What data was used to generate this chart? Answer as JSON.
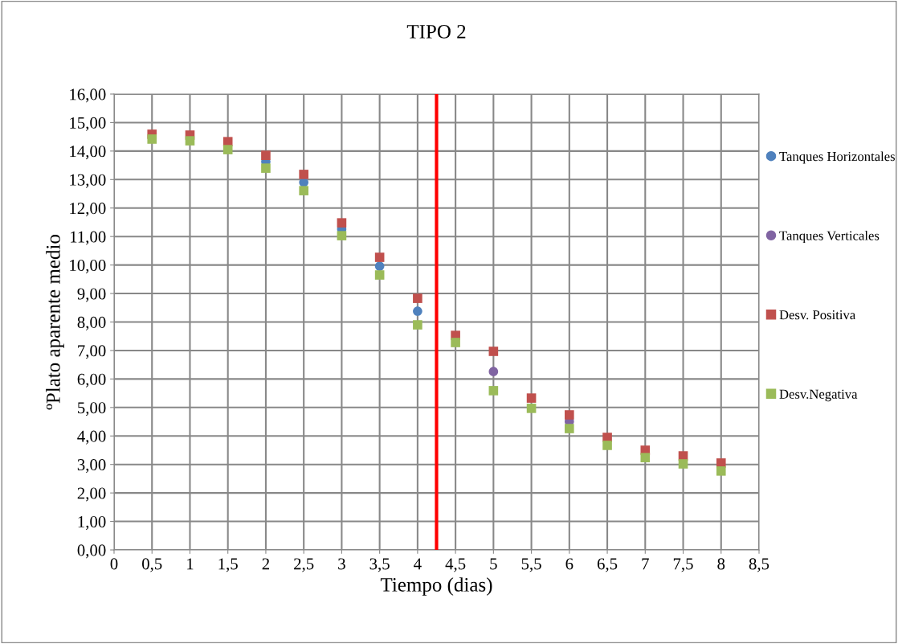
{
  "chart_data": {
    "type": "scatter",
    "title": "TIPO 2",
    "xlabel": "Tiempo (dias)",
    "ylabel": "ºPlato aparente medio",
    "series": [
      {
        "name": "Tanques Horizontales",
        "color": "#4f81bd",
        "marker": "circle",
        "x": [
          2,
          2.5,
          3,
          3.5,
          4
        ],
        "values": [
          13.63,
          12.9,
          11.26,
          9.96,
          8.38
        ]
      },
      {
        "name": "Tanques Verticales",
        "color": "#8064a2",
        "marker": "circle",
        "x": [
          5,
          6
        ],
        "values": [
          6.26,
          4.51
        ]
      },
      {
        "name": "Desv. Positiva",
        "color": "#c0504d",
        "marker": "square",
        "x": [
          0.5,
          1,
          1.5,
          2,
          2.5,
          3,
          3.5,
          4,
          4.5,
          5,
          5.5,
          6,
          6.5,
          7,
          7.5,
          8
        ],
        "values": [
          14.59,
          14.56,
          14.33,
          13.85,
          13.18,
          11.48,
          10.27,
          8.83,
          7.53,
          6.97,
          5.33,
          4.74,
          3.95,
          3.5,
          3.3,
          3.05
        ]
      },
      {
        "name": "Desv.Negativa",
        "color": "#9bbb59",
        "marker": "square",
        "x": [
          0.5,
          1,
          1.5,
          2,
          2.5,
          3,
          3.5,
          4,
          4.5,
          5,
          5.5,
          6,
          6.5,
          7,
          7.5,
          8
        ],
        "values": [
          14.42,
          14.36,
          14.05,
          13.4,
          12.61,
          11.03,
          9.65,
          7.9,
          7.28,
          5.59,
          4.97,
          4.26,
          3.67,
          3.24,
          3.02,
          2.77
        ]
      }
    ],
    "xlim": [
      0,
      8.5
    ],
    "xticks": [
      0,
      {
        "value": 0.5,
        "label": "0,5"
      },
      1,
      {
        "value": 1.5,
        "label": "1,5"
      },
      2,
      {
        "value": 2.5,
        "label": "2,5"
      },
      3,
      {
        "value": 3.5,
        "label": "3,5"
      },
      4,
      {
        "value": 4.5,
        "label": "4,5"
      },
      5,
      {
        "value": 5.5,
        "label": "5,5"
      },
      6,
      {
        "value": 6.5,
        "label": "6,5"
      },
      7,
      {
        "value": 7.5,
        "label": "7,5"
      },
      8,
      {
        "value": 8.5,
        "label": "8,5"
      }
    ],
    "ylim": [
      0,
      16
    ],
    "yticks": [
      {
        "value": 0,
        "label": "0,00"
      },
      {
        "value": 1,
        "label": "1,00"
      },
      {
        "value": 2,
        "label": "2,00"
      },
      {
        "value": 3,
        "label": "3,00"
      },
      {
        "value": 4,
        "label": "4,00"
      },
      {
        "value": 5,
        "label": "5,00"
      },
      {
        "value": 6,
        "label": "6,00"
      },
      {
        "value": 7,
        "label": "7,00"
      },
      {
        "value": 8,
        "label": "8,00"
      },
      {
        "value": 9,
        "label": "9,00"
      },
      {
        "value": 10,
        "label": "10,00"
      },
      {
        "value": 11,
        "label": "11,00"
      },
      {
        "value": 12,
        "label": "12,00"
      },
      {
        "value": 13,
        "label": "13,00"
      },
      {
        "value": 14,
        "label": "14,00"
      },
      {
        "value": 15,
        "label": "15,00"
      },
      {
        "value": 16,
        "label": "16,00"
      }
    ],
    "ref_lines": [
      {
        "axis": "x",
        "value": 4.25,
        "color": "#ff0000"
      }
    ],
    "grid": true,
    "legend": "right"
  }
}
